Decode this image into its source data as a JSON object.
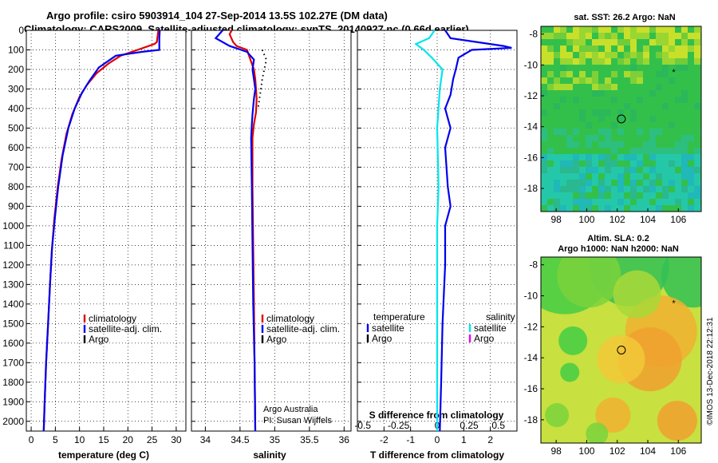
{
  "header": {
    "line1": "Argo profile: csiro 5903914_104 27-Sep-2014 13.5S 102.27E (DM data)",
    "line2": "Climatology: CARS2009. Satellite-adjusted climatology: synTS_20140927.nc (0.66d earlier)"
  },
  "side_label": "©IMOS 13-Dec-2018 22:12:31",
  "credit": [
    "Argo Australia",
    "PI: Susan Wijffels"
  ],
  "colors": {
    "climatology": "#e00000",
    "satellite": "#0000ee",
    "argo": "#000000",
    "sat_salinity": "#00e5ee",
    "argo_salinity": "#ee00ee"
  },
  "chart_data": [
    {
      "type": "line",
      "xlabel": "temperature (deg C)",
      "xlim": [
        -1,
        32
      ],
      "xticks": [
        0,
        5,
        10,
        15,
        20,
        25,
        30
      ],
      "ylim": [
        2050,
        0
      ],
      "yticks": [
        0,
        100,
        200,
        300,
        400,
        500,
        600,
        700,
        800,
        900,
        1000,
        1100,
        1200,
        1300,
        1400,
        1500,
        1600,
        1700,
        1800,
        1900,
        2000
      ],
      "legend": [
        "climatology",
        "satellite-adj. clim.",
        "Argo"
      ],
      "series": [
        {
          "name": "climatology",
          "color": "#e00000",
          "points": [
            [
              26.3,
              0
            ],
            [
              26.0,
              60
            ],
            [
              25.5,
              70
            ],
            [
              22.0,
              100
            ],
            [
              18.5,
              130
            ],
            [
              16.0,
              170
            ],
            [
              13.5,
              220
            ],
            [
              11.5,
              280
            ],
            [
              10.0,
              340
            ],
            [
              8.5,
              430
            ],
            [
              7.3,
              530
            ],
            [
              6.3,
              660
            ],
            [
              5.5,
              800
            ],
            [
              4.8,
              960
            ],
            [
              4.3,
              1120
            ],
            [
              3.9,
              1300
            ],
            [
              3.5,
              1500
            ],
            [
              3.1,
              1700
            ],
            [
              2.8,
              1900
            ],
            [
              2.6,
              2050
            ]
          ]
        },
        {
          "name": "satellite-adj. clim.",
          "color": "#0000ee",
          "points": [
            [
              26.6,
              0
            ],
            [
              26.5,
              40
            ],
            [
              26.5,
              100
            ],
            [
              23.0,
              110
            ],
            [
              17.5,
              130
            ],
            [
              14.0,
              190
            ],
            [
              12.0,
              260
            ],
            [
              10.5,
              320
            ],
            [
              9.0,
              400
            ],
            [
              7.7,
              500
            ],
            [
              6.5,
              640
            ],
            [
              5.6,
              800
            ],
            [
              4.9,
              960
            ],
            [
              4.3,
              1120
            ],
            [
              3.9,
              1300
            ],
            [
              3.5,
              1500
            ],
            [
              3.1,
              1700
            ],
            [
              2.8,
              1900
            ],
            [
              2.6,
              2050
            ]
          ]
        }
      ]
    },
    {
      "type": "line",
      "xlabel": "salinity",
      "xlim": [
        33.8,
        36.1
      ],
      "xticks": [
        34,
        34.5,
        35,
        35.5,
        36
      ],
      "ylim": [
        2050,
        0
      ],
      "legend": [
        "climatology",
        "satellite-adj. clim.",
        "Argo"
      ],
      "series": [
        {
          "name": "climatology",
          "color": "#e00000",
          "points": [
            [
              34.38,
              0
            ],
            [
              34.35,
              20
            ],
            [
              34.4,
              60
            ],
            [
              34.45,
              80
            ],
            [
              34.6,
              100
            ],
            [
              34.65,
              150
            ],
            [
              34.7,
              200
            ],
            [
              34.72,
              250
            ],
            [
              34.73,
              300
            ],
            [
              34.74,
              350
            ],
            [
              34.73,
              420
            ],
            [
              34.7,
              480
            ],
            [
              34.68,
              550
            ],
            [
              34.68,
              800
            ],
            [
              34.69,
              1100
            ],
            [
              34.7,
              1400
            ],
            [
              34.71,
              1700
            ],
            [
              34.72,
              2050
            ]
          ]
        },
        {
          "name": "satellite-adj. clim.",
          "color": "#0000ee",
          "points": [
            [
              34.25,
              0
            ],
            [
              34.2,
              20
            ],
            [
              34.15,
              40
            ],
            [
              34.35,
              80
            ],
            [
              34.6,
              110
            ],
            [
              34.7,
              150
            ],
            [
              34.68,
              200
            ],
            [
              34.7,
              250
            ],
            [
              34.72,
              300
            ],
            [
              34.7,
              350
            ],
            [
              34.68,
              430
            ],
            [
              34.67,
              480
            ],
            [
              34.66,
              550
            ],
            [
              34.67,
              800
            ],
            [
              34.68,
              1100
            ],
            [
              34.69,
              1400
            ],
            [
              34.71,
              1700
            ],
            [
              34.72,
              2050
            ]
          ]
        },
        {
          "name": "Argo",
          "color": "#000000",
          "dotted": true,
          "points": [
            [
              34.82,
              100
            ],
            [
              34.88,
              150
            ],
            [
              34.85,
              200
            ],
            [
              34.82,
              250
            ],
            [
              34.8,
              300
            ],
            [
              34.78,
              350
            ],
            [
              34.76,
              400
            ]
          ]
        }
      ]
    },
    {
      "type": "line",
      "xlabel": "T difference from climatology",
      "xlabel2": "S difference from climatology",
      "xlim": [
        -3,
        3
      ],
      "xticks": [
        -2,
        -1,
        0,
        1,
        2
      ],
      "xticks2": [
        "-0.5",
        "-0.25",
        "0",
        "0.25",
        "0.5"
      ],
      "ylim": [
        2050,
        0
      ],
      "legend_left_title": "temperature",
      "legend_left": [
        "satellite",
        "Argo"
      ],
      "legend_right_title": "salinity",
      "legend_right": [
        "satellite",
        "Argo"
      ],
      "series": [
        {
          "name": "satellite",
          "color": "#0000ee",
          "points": [
            [
              0.3,
              0
            ],
            [
              0.5,
              40
            ],
            [
              2.5,
              80
            ],
            [
              2.8,
              90
            ],
            [
              1.3,
              100
            ],
            [
              0.8,
              140
            ],
            [
              0.7,
              200
            ],
            [
              0.6,
              250
            ],
            [
              0.5,
              330
            ],
            [
              0.3,
              400
            ],
            [
              0.5,
              500
            ],
            [
              0.3,
              600
            ],
            [
              0.4,
              800
            ],
            [
              0.5,
              900
            ],
            [
              0.3,
              1000
            ],
            [
              0.3,
              1200
            ],
            [
              0.2,
              1500
            ],
            [
              0.15,
              1800
            ],
            [
              0.1,
              2050
            ]
          ]
        },
        {
          "name": "satellite",
          "color": "#00e5ee",
          "points": [
            [
              -0.1,
              0
            ],
            [
              -0.3,
              40
            ],
            [
              -0.8,
              70
            ],
            [
              -0.5,
              100
            ],
            [
              -0.2,
              140
            ],
            [
              0.2,
              200
            ],
            [
              0.1,
              300
            ],
            [
              0.0,
              500
            ],
            [
              0.05,
              800
            ],
            [
              0.0,
              1000
            ],
            [
              0.0,
              1500
            ],
            [
              0.0,
              2050
            ]
          ]
        }
      ]
    },
    {
      "type": "heatmap",
      "title": "sat. SST: 26.2 Argo: NaN",
      "xticks": [
        98,
        100,
        102,
        104,
        106
      ],
      "yticks": [
        -8,
        -10,
        -12,
        -14,
        -16,
        -18
      ],
      "xlim": [
        97,
        107.5
      ],
      "ylim": [
        -19.5,
        -7.5
      ],
      "markers": [
        {
          "lon": 102.27,
          "lat": -13.5,
          "symbol": "circle"
        },
        {
          "lon": 105.7,
          "lat": -10.5,
          "symbol": "star"
        }
      ]
    },
    {
      "type": "heatmap",
      "title": "Altim. SLA: 0.2",
      "subtitle": "Argo h1000: NaN h2000: NaN",
      "xticks": [
        98,
        100,
        102,
        104,
        106
      ],
      "yticks": [
        -8,
        -10,
        -12,
        -14,
        -16,
        -18
      ],
      "xlim": [
        97,
        107.5
      ],
      "ylim": [
        -19.5,
        -7.5
      ],
      "markers": [
        {
          "lon": 102.27,
          "lat": -13.5,
          "symbol": "circle"
        },
        {
          "lon": 105.7,
          "lat": -10.5,
          "symbol": "star"
        }
      ]
    }
  ]
}
